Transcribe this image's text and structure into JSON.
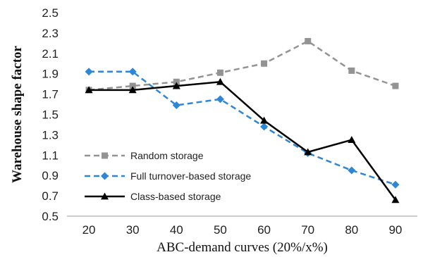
{
  "chart_data": {
    "type": "line",
    "title": "",
    "xlabel": "ABC-demand curves (20%/x%)",
    "ylabel": "Warehouse shape factor",
    "x": [
      20,
      30,
      40,
      50,
      60,
      70,
      80,
      90
    ],
    "x_ticks": [
      "20",
      "30",
      "40",
      "50",
      "60",
      "70",
      "80",
      "90"
    ],
    "y_ticks": [
      "0.5",
      "0.7",
      "0.9",
      "1.1",
      "1.3",
      "1.5",
      "1.7",
      "1.9",
      "2.1",
      "2.3",
      "2.5"
    ],
    "ylim": [
      0.5,
      2.5
    ],
    "grid": false,
    "legend_position": "bottom-left",
    "series": [
      {
        "name": "Random storage",
        "values": [
          1.74,
          1.78,
          1.82,
          1.91,
          2.0,
          2.22,
          1.93,
          1.78
        ],
        "color": "#939393",
        "marker": "square",
        "dash": "dashed"
      },
      {
        "name": "Full turnover-based storage",
        "values": [
          1.92,
          1.92,
          1.59,
          1.65,
          1.38,
          1.12,
          0.95,
          0.81
        ],
        "color": "#2e86d6",
        "marker": "diamond",
        "dash": "dashed"
      },
      {
        "name": "Class-based storage",
        "values": [
          1.74,
          1.74,
          1.78,
          1.82,
          1.44,
          1.13,
          1.25,
          0.66
        ],
        "color": "#000000",
        "marker": "triangle",
        "dash": "solid"
      }
    ]
  }
}
